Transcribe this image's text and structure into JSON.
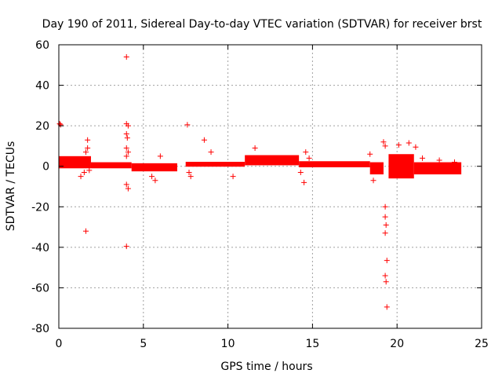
{
  "chart_data": {
    "type": "scatter",
    "title": "Day 190 of 2011, Sidereal Day-to-day VTEC variation (SDTVAR) for receiver brst",
    "xlabel": "GPS time / hours",
    "ylabel": "SDTVAR / TECUs",
    "xlim": [
      0,
      25
    ],
    "ylim": [
      -80,
      60
    ],
    "xticks": [
      0,
      5,
      10,
      15,
      20,
      25
    ],
    "yticks": [
      -80,
      -60,
      -40,
      -20,
      0,
      20,
      40,
      60
    ],
    "grid": true,
    "marker": "+",
    "color": "#ff0000",
    "series": [
      {
        "name": "SDTVAR",
        "points": [
          [
            0.05,
            21
          ],
          [
            0.1,
            20.5
          ],
          [
            0.2,
            1.5
          ],
          [
            0.5,
            3
          ],
          [
            1.0,
            2.5
          ],
          [
            1.3,
            -5
          ],
          [
            1.5,
            -3
          ],
          [
            1.6,
            7
          ],
          [
            1.7,
            9
          ],
          [
            1.7,
            13
          ],
          [
            1.6,
            -32
          ],
          [
            1.8,
            -2
          ],
          [
            4.0,
            54
          ],
          [
            4.0,
            21
          ],
          [
            4.1,
            20
          ],
          [
            4.0,
            16
          ],
          [
            4.05,
            14
          ],
          [
            4.0,
            9
          ],
          [
            4.1,
            7
          ],
          [
            4.0,
            5
          ],
          [
            4.0,
            -9
          ],
          [
            4.1,
            -11
          ],
          [
            4.0,
            -39.5
          ],
          [
            5.5,
            -5
          ],
          [
            5.7,
            -7
          ],
          [
            6.0,
            5
          ],
          [
            7.6,
            20.5
          ],
          [
            7.7,
            -3
          ],
          [
            7.8,
            -5
          ],
          [
            8.6,
            13
          ],
          [
            9.0,
            7
          ],
          [
            10.3,
            -5
          ],
          [
            11.6,
            9
          ],
          [
            14.3,
            -3
          ],
          [
            14.5,
            -8
          ],
          [
            14.6,
            7
          ],
          [
            14.8,
            4
          ],
          [
            18.4,
            6
          ],
          [
            18.6,
            -7
          ],
          [
            19.2,
            12
          ],
          [
            19.3,
            10
          ],
          [
            19.3,
            -20
          ],
          [
            19.3,
            -25
          ],
          [
            19.35,
            -29
          ],
          [
            19.3,
            -33
          ],
          [
            19.4,
            -46.5
          ],
          [
            19.3,
            -54
          ],
          [
            19.35,
            -57
          ],
          [
            19.4,
            -69.5
          ],
          [
            20.1,
            10.5
          ],
          [
            20.7,
            11.5
          ],
          [
            21.1,
            9.5
          ],
          [
            21.5,
            4
          ],
          [
            22.5,
            3
          ],
          [
            23.4,
            2
          ]
        ]
      }
    ],
    "bands": [
      {
        "x0": 0,
        "x1": 1.9,
        "y_center": 2,
        "half_width": 3
      },
      {
        "x0": 1.9,
        "x1": 4.3,
        "y_center": 0.5,
        "half_width": 1.5
      },
      {
        "x0": 4.3,
        "x1": 7.0,
        "y_center": -0.5,
        "half_width": 2
      },
      {
        "x0": 7.5,
        "x1": 11.0,
        "y_center": 1,
        "half_width": 1.2
      },
      {
        "x0": 11.0,
        "x1": 14.2,
        "y_center": 3,
        "half_width": 2.5
      },
      {
        "x0": 14.2,
        "x1": 18.4,
        "y_center": 1,
        "half_width": 1.5
      },
      {
        "x0": 18.4,
        "x1": 19.2,
        "y_center": -1,
        "half_width": 3
      },
      {
        "x0": 19.5,
        "x1": 21.0,
        "y_center": 0,
        "half_width": 6
      },
      {
        "x0": 21.0,
        "x1": 23.8,
        "y_center": -1,
        "half_width": 3
      }
    ]
  }
}
